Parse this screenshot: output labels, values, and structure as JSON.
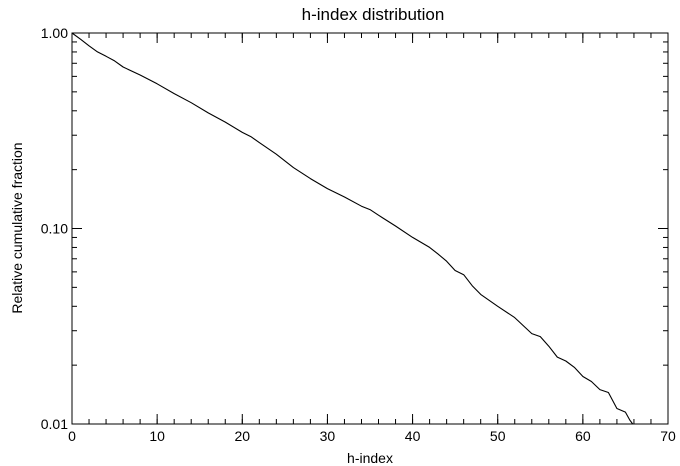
{
  "chart_data": {
    "type": "line",
    "title": "h-index distribution",
    "xlabel": "h-index",
    "ylabel": "Relative cumulative fraction",
    "xlim": [
      0,
      70
    ],
    "ylim": [
      0.01,
      1.0
    ],
    "yscale": "log",
    "grid": false,
    "x_ticks": [
      0,
      10,
      20,
      30,
      40,
      50,
      60,
      70
    ],
    "x_tick_labels": [
      "0",
      "10",
      "20",
      "30",
      "40",
      "50",
      "60",
      "70"
    ],
    "x_minor_step": 2,
    "y_ticks": [
      1.0,
      0.1,
      0.01
    ],
    "y_tick_labels": [
      "1.00",
      "0.10",
      "0.01"
    ],
    "series": [
      {
        "x": [
          0,
          1,
          2,
          3,
          4,
          5,
          6,
          8,
          10,
          12,
          14,
          16,
          18,
          20,
          21,
          22,
          24,
          26,
          28,
          30,
          32,
          34,
          35,
          36,
          38,
          40,
          42,
          43,
          44,
          45,
          46,
          47,
          48,
          50,
          52,
          54,
          55,
          56,
          57,
          58,
          59,
          60,
          61,
          62,
          63,
          64,
          65,
          65.5,
          66
        ],
        "y": [
          1.0,
          0.93,
          0.86,
          0.8,
          0.76,
          0.72,
          0.67,
          0.61,
          0.55,
          0.49,
          0.44,
          0.39,
          0.35,
          0.31,
          0.295,
          0.275,
          0.24,
          0.205,
          0.18,
          0.16,
          0.145,
          0.13,
          0.125,
          0.117,
          0.103,
          0.09,
          0.08,
          0.074,
          0.068,
          0.061,
          0.058,
          0.051,
          0.046,
          0.04,
          0.035,
          0.029,
          0.028,
          0.025,
          0.022,
          0.021,
          0.0195,
          0.0175,
          0.0165,
          0.015,
          0.0145,
          0.012,
          0.0115,
          0.0105,
          0.0098
        ]
      }
    ]
  }
}
